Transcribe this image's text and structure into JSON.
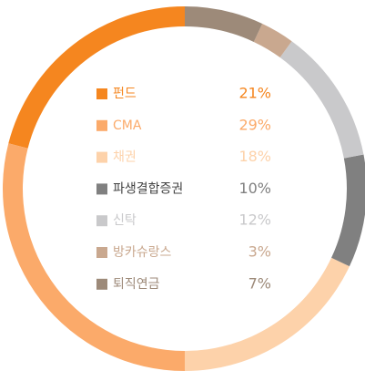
{
  "chart_data": {
    "type": "donut",
    "series": [
      {
        "name": "펀드",
        "color": "#f5861f",
        "values": [
          21
        ],
        "value_labels": [
          "21%"
        ]
      },
      {
        "name": "CMA",
        "color": "#fbaa6a",
        "values": [
          29
        ],
        "value_labels": [
          "29%"
        ]
      },
      {
        "name": "채권",
        "color": "#fdd2aa",
        "values": [
          18
        ],
        "value_labels": [
          "18%"
        ]
      },
      {
        "name": "파생결합증권",
        "color": "#808080",
        "values": [
          10
        ],
        "value_labels": [
          "10%"
        ]
      },
      {
        "name": "신탁",
        "color": "#c9c9cb",
        "values": [
          12
        ],
        "value_labels": [
          "12%"
        ]
      },
      {
        "name": "방카슈랑스",
        "color": "#c9a88f",
        "values": [
          3
        ],
        "value_labels": [
          "3%"
        ]
      },
      {
        "name": "퇴직연금",
        "color": "#9d8a79",
        "values": [
          7
        ],
        "value_labels": [
          "7%"
        ]
      }
    ]
  }
}
